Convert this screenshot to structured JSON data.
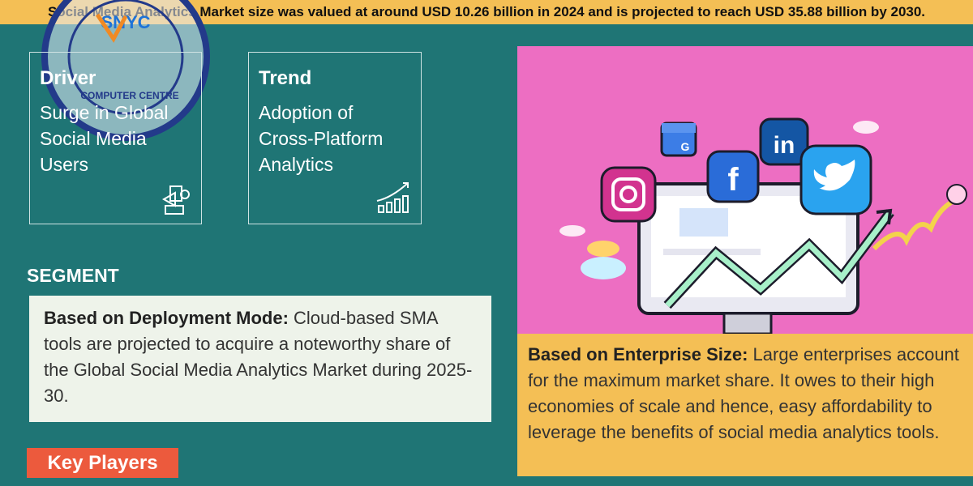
{
  "banner": {
    "text": "Social Media Analytics Market size was valued at around USD 10.26 billion in 2024 and is projected to reach USD 35.88 billion by 2030."
  },
  "driver": {
    "title": "Driver",
    "body": "Surge in Global Social Media Users",
    "icon": "megaphone-icon"
  },
  "trend": {
    "title": "Trend",
    "body": "Adoption of Cross-Platform Analytics",
    "icon": "growth-chart-icon"
  },
  "segment": {
    "title": "SEGMENT",
    "deployment_label": "Based on Deployment Mode:",
    "deployment_text": " Cloud-based SMA tools are projected to acquire a noteworthy share of the Global Social Media Analytics Market during 2025-30."
  },
  "enterprise": {
    "label": "Based on Enterprise Size:",
    "text": " Large enterprises account for the maximum market share. It owes to their high economies of scale and hence, easy affordability to leverage the benefits of social media analytics tools."
  },
  "key_players": {
    "label": "Key Players"
  },
  "logo": {
    "brand": "SNYC",
    "ring_text": "COMPUTER CENTRE"
  },
  "illustration": {
    "icons": [
      "instagram-icon",
      "facebook-icon",
      "linkedin-icon",
      "twitter-icon",
      "google-business-icon"
    ]
  },
  "colors": {
    "background": "#1f7575",
    "banner": "#f4bf55",
    "pink": "#ed6ec2",
    "key_players": "#ec5a3d",
    "segment_box": "#eef3ea"
  }
}
